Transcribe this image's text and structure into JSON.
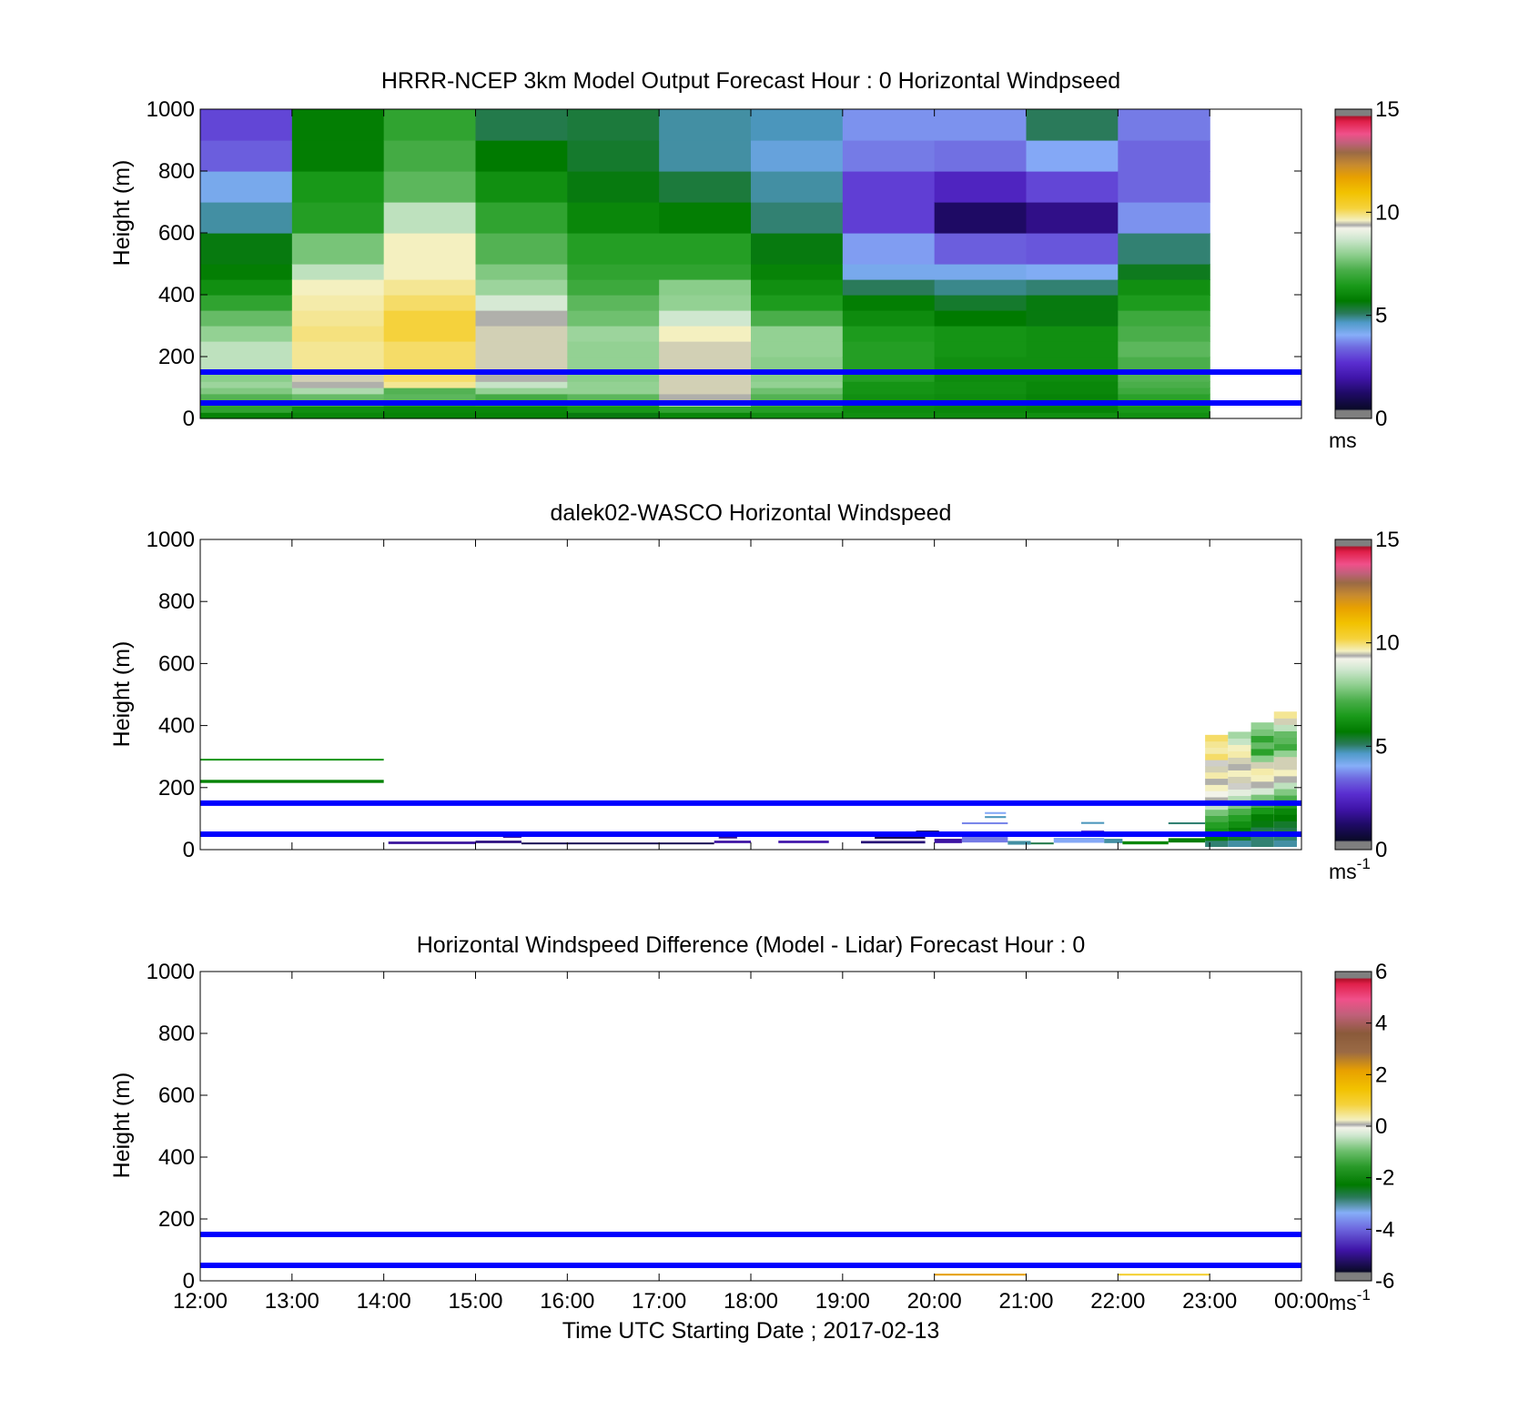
{
  "colorscales": {
    "speed": {
      "stops": [
        [
          0.0,
          "#7f7f7f"
        ],
        [
          0.025,
          "#7f7f7f"
        ],
        [
          0.03,
          "#0a0a28"
        ],
        [
          0.08,
          "#1e0a64"
        ],
        [
          0.13,
          "#3f14a8"
        ],
        [
          0.18,
          "#5a2ed0"
        ],
        [
          0.23,
          "#6f6ae0"
        ],
        [
          0.27,
          "#86aef8"
        ],
        [
          0.31,
          "#4f9ac8"
        ],
        [
          0.34,
          "#2a7a5a"
        ],
        [
          0.38,
          "#007a00"
        ],
        [
          0.43,
          "#1a9a1a"
        ],
        [
          0.48,
          "#4aae4a"
        ],
        [
          0.53,
          "#8fcf8f"
        ],
        [
          0.58,
          "#cfe7cf"
        ],
        [
          0.615,
          "#f4f4ea"
        ],
        [
          0.625,
          "#a8a8a8"
        ],
        [
          0.64,
          "#f4f0c0"
        ],
        [
          0.68,
          "#f5d23c"
        ],
        [
          0.73,
          "#f2c200"
        ],
        [
          0.78,
          "#e8a000"
        ],
        [
          0.82,
          "#c78a30"
        ],
        [
          0.86,
          "#9a6a45"
        ],
        [
          0.89,
          "#c0607a"
        ],
        [
          0.92,
          "#f0508a"
        ],
        [
          0.96,
          "#e0204a"
        ],
        [
          0.975,
          "#b0102a"
        ],
        [
          0.98,
          "#7f7f7f"
        ],
        [
          1.0,
          "#7f7f7f"
        ]
      ]
    },
    "difference": {
      "stops": [
        [
          0.0,
          "#7f7f7f"
        ],
        [
          0.025,
          "#7f7f7f"
        ],
        [
          0.03,
          "#0a0a28"
        ],
        [
          0.1,
          "#3f14a8"
        ],
        [
          0.17,
          "#6f6ae0"
        ],
        [
          0.22,
          "#86aef8"
        ],
        [
          0.27,
          "#2a7a5a"
        ],
        [
          0.31,
          "#007a00"
        ],
        [
          0.37,
          "#2a9a2a"
        ],
        [
          0.42,
          "#6ebf6e"
        ],
        [
          0.47,
          "#cfe7cf"
        ],
        [
          0.495,
          "#f4f4ea"
        ],
        [
          0.505,
          "#a8a8a8"
        ],
        [
          0.52,
          "#f4f0c0"
        ],
        [
          0.57,
          "#f5d23c"
        ],
        [
          0.62,
          "#f2c200"
        ],
        [
          0.68,
          "#e8a000"
        ],
        [
          0.74,
          "#9a6a45"
        ],
        [
          0.8,
          "#8a5a3a"
        ],
        [
          0.86,
          "#c0607a"
        ],
        [
          0.91,
          "#f0508a"
        ],
        [
          0.96,
          "#e0204a"
        ],
        [
          0.975,
          "#b0102a"
        ],
        [
          0.98,
          "#7f7f7f"
        ],
        [
          1.0,
          "#7f7f7f"
        ]
      ]
    }
  },
  "reference_line_color": "#0000ff",
  "chart_data": [
    {
      "type": "heatmap",
      "title": "HRRR-NCEP 3km Model Output   Forecast Hour : 0 Horizontal Windpseed",
      "ylabel": "Height (m)",
      "ylim": [
        0,
        1000
      ],
      "yticks": [
        "0",
        "200",
        "400",
        "600",
        "800",
        "1000"
      ],
      "xlim": [
        12,
        24
      ],
      "xticks": [
        "12:00",
        "13:00",
        "14:00",
        "15:00",
        "16:00",
        "17:00",
        "18:00",
        "19:00",
        "20:00",
        "21:00",
        "22:00",
        "23:00",
        "00:00"
      ],
      "show_xtick_labels": false,
      "colorbar": {
        "scale": "speed",
        "range": [
          0,
          15
        ],
        "ticks": [
          "0",
          "5",
          "10",
          "15"
        ],
        "unit": "ms",
        "unit_superscript": ""
      },
      "reference_lines_height_m": [
        150,
        50
      ],
      "cell_height_bands_m": [
        [
          0,
          20
        ],
        [
          20,
          40
        ],
        [
          40,
          60
        ],
        [
          60,
          80
        ],
        [
          80,
          100
        ],
        [
          100,
          120
        ],
        [
          120,
          150
        ],
        [
          150,
          200
        ],
        [
          200,
          250
        ],
        [
          250,
          300
        ],
        [
          300,
          350
        ],
        [
          350,
          400
        ],
        [
          400,
          450
        ],
        [
          450,
          500
        ],
        [
          500,
          600
        ],
        [
          600,
          700
        ],
        [
          700,
          800
        ],
        [
          800,
          900
        ],
        [
          900,
          1000
        ]
      ],
      "columns": [
        {
          "start_hour": 12,
          "end_hour": 13,
          "values_ms": [
            5.9,
            6.8,
            6.9,
            7.3,
            7.8,
            8.1,
            7.9,
            8.5,
            8.5,
            8.0,
            7.5,
            6.8,
            6.2,
            5.8,
            5.6,
            4.8,
            4.2,
            3.3,
            3.0
          ]
        },
        {
          "start_hour": 13,
          "end_hour": 14,
          "values_ms": [
            6.0,
            6.2,
            7.1,
            7.5,
            8.3,
            9.4,
            9.5,
            9.8,
            9.8,
            9.9,
            9.8,
            9.7,
            9.6,
            8.5,
            7.7,
            6.6,
            6.4,
            5.8,
            5.8
          ]
        },
        {
          "start_hour": 14,
          "end_hour": 15,
          "values_ms": [
            5.9,
            6.0,
            6.6,
            7.4,
            7.3,
            9.8,
            10.0,
            10.0,
            10.0,
            10.2,
            10.2,
            10.0,
            9.8,
            9.6,
            9.6,
            8.5,
            7.4,
            7.1,
            6.8
          ]
        },
        {
          "start_hour": 15,
          "end_hour": 16,
          "values_ms": [
            5.9,
            6.0,
            6.7,
            7.1,
            8.0,
            8.6,
            9.4,
            9.5,
            9.5,
            9.5,
            9.4,
            8.8,
            8.1,
            7.8,
            7.3,
            6.8,
            6.2,
            5.7,
            5.2
          ]
        },
        {
          "start_hour": 16,
          "end_hour": 17,
          "values_ms": [
            5.6,
            6.4,
            6.8,
            7.4,
            8.0,
            8.0,
            7.9,
            8.0,
            8.0,
            8.1,
            7.6,
            7.4,
            7.0,
            6.8,
            6.6,
            6.0,
            5.6,
            5.4,
            5.3
          ]
        },
        {
          "start_hour": 17,
          "end_hour": 18,
          "values_ms": [
            6.0,
            6.8,
            8.3,
            9.4,
            9.5,
            9.5,
            9.5,
            9.5,
            9.5,
            9.6,
            8.7,
            8.0,
            7.9,
            6.8,
            6.6,
            5.8,
            5.3,
            4.8,
            4.8
          ]
        },
        {
          "start_hour": 18,
          "end_hour": 19,
          "values_ms": [
            6.2,
            6.6,
            7.1,
            7.3,
            7.6,
            8.0,
            7.9,
            7.9,
            8.0,
            8.0,
            7.2,
            6.5,
            6.2,
            5.9,
            5.6,
            5.0,
            4.8,
            4.4,
            4.7
          ]
        },
        {
          "start_hour": 19,
          "end_hour": 20,
          "values_ms": [
            6.2,
            6.1,
            6.1,
            6.2,
            6.3,
            6.3,
            6.6,
            6.6,
            6.6,
            6.5,
            6.1,
            5.8,
            5.1,
            4.2,
            3.9,
            2.9,
            2.9,
            3.6,
            3.8
          ]
        },
        {
          "start_hour": 20,
          "end_hour": 21,
          "values_ms": [
            6.1,
            6.0,
            6.0,
            6.1,
            6.2,
            6.2,
            6.1,
            6.2,
            6.3,
            6.3,
            5.7,
            5.4,
            4.9,
            4.2,
            3.3,
            1.2,
            2.4,
            3.5,
            3.8
          ]
        },
        {
          "start_hour": 21,
          "end_hour": 22,
          "values_ms": [
            6.2,
            5.9,
            5.9,
            5.9,
            6.0,
            6.0,
            6.1,
            6.2,
            6.2,
            6.2,
            5.6,
            5.6,
            5.0,
            4.1,
            3.2,
            1.6,
            3.0,
            4.0,
            5.1
          ]
        },
        {
          "start_hour": 22,
          "end_hour": 23,
          "values_ms": [
            6.2,
            6.4,
            6.6,
            6.7,
            7.0,
            7.2,
            7.3,
            7.2,
            7.4,
            7.2,
            7.0,
            6.5,
            6.2,
            5.5,
            5.0,
            3.8,
            3.4,
            3.4,
            3.6
          ]
        }
      ]
    },
    {
      "type": "heatmap",
      "title": "dalek02-WASCO  Horizontal Windspeed",
      "ylabel": "Height (m)",
      "ylim": [
        0,
        1000
      ],
      "yticks": [
        "0",
        "200",
        "400",
        "600",
        "800",
        "1000"
      ],
      "xlim": [
        12,
        24
      ],
      "xticks": [
        "12:00",
        "13:00",
        "14:00",
        "15:00",
        "16:00",
        "17:00",
        "18:00",
        "19:00",
        "20:00",
        "21:00",
        "22:00",
        "23:00",
        "00:00"
      ],
      "show_xtick_labels": false,
      "colorbar": {
        "scale": "speed",
        "range": [
          0,
          15
        ],
        "ticks": [
          "0",
          "5",
          "10",
          "15"
        ],
        "unit": "ms",
        "unit_superscript": "-1"
      },
      "reference_lines_height_m": [
        150,
        50
      ],
      "segments": [
        {
          "hour_start": 12.0,
          "hour_end": 14.0,
          "height_m": 290,
          "thickness_m": 4,
          "value_ms": 6.3
        },
        {
          "hour_start": 12.0,
          "hour_end": 14.0,
          "height_m": 220,
          "thickness_m": 10,
          "value_ms": 5.9
        },
        {
          "hour_start": 14.05,
          "hour_end": 15.0,
          "height_m": 22,
          "thickness_m": 8,
          "value_ms": 1.8
        },
        {
          "hour_start": 15.0,
          "hour_end": 15.5,
          "height_m": 25,
          "thickness_m": 8,
          "value_ms": 1.5
        },
        {
          "hour_start": 15.3,
          "hour_end": 15.5,
          "height_m": 42,
          "thickness_m": 8,
          "value_ms": 1.8
        },
        {
          "hour_start": 15.5,
          "hour_end": 17.6,
          "height_m": 20,
          "thickness_m": 4,
          "value_ms": 1.0
        },
        {
          "hour_start": 17.6,
          "hour_end": 18.0,
          "height_m": 25,
          "thickness_m": 8,
          "value_ms": 1.9
        },
        {
          "hour_start": 17.65,
          "hour_end": 17.85,
          "height_m": 40,
          "thickness_m": 8,
          "value_ms": 1.6
        },
        {
          "hour_start": 18.3,
          "hour_end": 18.85,
          "height_m": 25,
          "thickness_m": 8,
          "value_ms": 2.0
        },
        {
          "hour_start": 19.2,
          "hour_end": 19.9,
          "height_m": 24,
          "thickness_m": 8,
          "value_ms": 1.4
        },
        {
          "hour_start": 19.35,
          "hour_end": 19.9,
          "height_m": 40,
          "thickness_m": 10,
          "value_ms": 1.0
        },
        {
          "hour_start": 19.8,
          "hour_end": 20.05,
          "height_m": 58,
          "thickness_m": 7,
          "value_ms": 0.8
        },
        {
          "hour_start": 20.0,
          "hour_end": 20.3,
          "height_m": 28,
          "thickness_m": 14,
          "value_ms": 1.9
        },
        {
          "hour_start": 20.3,
          "hour_end": 20.8,
          "height_m": 32,
          "thickness_m": 18,
          "value_ms": 3.6
        },
        {
          "hour_start": 20.3,
          "hour_end": 20.8,
          "height_m": 85,
          "thickness_m": 6,
          "value_ms": 3.7
        },
        {
          "hour_start": 20.55,
          "hour_end": 20.78,
          "height_m": 105,
          "thickness_m": 6,
          "value_ms": 4.7
        },
        {
          "hour_start": 20.55,
          "hour_end": 20.78,
          "height_m": 118,
          "thickness_m": 6,
          "value_ms": 4.0
        },
        {
          "hour_start": 20.8,
          "hour_end": 21.05,
          "height_m": 22,
          "thickness_m": 12,
          "value_ms": 4.8
        },
        {
          "hour_start": 21.05,
          "hour_end": 21.3,
          "height_m": 20,
          "thickness_m": 6,
          "value_ms": 5.2
        },
        {
          "hour_start": 21.3,
          "hour_end": 21.85,
          "height_m": 30,
          "thickness_m": 16,
          "value_ms": 4.0
        },
        {
          "hour_start": 21.6,
          "hour_end": 21.85,
          "height_m": 58,
          "thickness_m": 8,
          "value_ms": 3.0
        },
        {
          "hour_start": 21.6,
          "hour_end": 21.85,
          "height_m": 86,
          "thickness_m": 6,
          "value_ms": 4.7
        },
        {
          "hour_start": 21.85,
          "hour_end": 22.05,
          "height_m": 28,
          "thickness_m": 14,
          "value_ms": 4.8
        },
        {
          "hour_start": 22.05,
          "hour_end": 22.55,
          "height_m": 22,
          "thickness_m": 10,
          "value_ms": 6.0
        },
        {
          "hour_start": 22.55,
          "hour_end": 22.95,
          "height_m": 30,
          "thickness_m": 14,
          "value_ms": 5.8
        },
        {
          "hour_start": 22.55,
          "hour_end": 22.95,
          "height_m": 85,
          "thickness_m": 6,
          "value_ms": 5.0
        }
      ],
      "profiles": [
        {
          "hour_start": 22.95,
          "hour_end": 23.2,
          "band_bottom_m": 10,
          "band_top_m": 370,
          "values_ms": [
            5.0,
            5.8,
            6.3,
            6.6,
            7.1,
            7.7,
            8.6,
            9.4,
            9.2,
            9.6,
            9.4,
            9.7,
            9.5,
            9.3,
            10.0,
            9.7,
            9.8,
            10.0
          ]
        },
        {
          "hour_start": 23.2,
          "hour_end": 23.45,
          "band_bottom_m": 10,
          "band_top_m": 380,
          "values_ms": [
            4.8,
            5.4,
            5.8,
            6.2,
            6.6,
            7.2,
            7.8,
            8.4,
            9.0,
            9.3,
            9.5,
            9.6,
            9.4,
            9.5,
            9.7,
            9.6,
            8.6,
            8.2
          ]
        },
        {
          "hour_start": 23.45,
          "hour_end": 23.7,
          "band_bottom_m": 10,
          "band_top_m": 410,
          "values_ms": [
            5.0,
            5.0,
            5.2,
            5.6,
            5.8,
            6.4,
            7.1,
            7.7,
            8.8,
            9.4,
            9.6,
            9.7,
            9.5,
            7.9,
            6.7,
            7.5,
            6.8,
            7.7,
            8.0
          ]
        },
        {
          "hour_start": 23.7,
          "hour_end": 23.95,
          "band_bottom_m": 10,
          "band_top_m": 445,
          "values_ms": [
            4.8,
            5.0,
            5.2,
            5.4,
            5.7,
            6.0,
            6.6,
            7.2,
            7.8,
            8.5,
            9.4,
            9.6,
            9.5,
            9.5,
            8.0,
            7.0,
            7.4,
            7.5,
            8.5,
            9.5,
            9.8
          ]
        }
      ]
    },
    {
      "type": "heatmap",
      "title": "Horizontal Windspeed Difference (Model - Lidar) Forecast Hour : 0",
      "ylabel": "Height (m)",
      "xlabel": "Time UTC  Starting Date ; 2017-02-13",
      "ylim": [
        0,
        1000
      ],
      "yticks": [
        "0",
        "200",
        "400",
        "600",
        "800",
        "1000"
      ],
      "xlim": [
        12,
        24
      ],
      "xticks": [
        "12:00",
        "13:00",
        "14:00",
        "15:00",
        "16:00",
        "17:00",
        "18:00",
        "19:00",
        "20:00",
        "21:00",
        "22:00",
        "23:00",
        "00:00"
      ],
      "show_xtick_labels": true,
      "colorbar": {
        "scale": "difference",
        "range": [
          -6,
          6
        ],
        "ticks": [
          "-6",
          "-4",
          "-2",
          "0",
          "2",
          "4",
          "6"
        ],
        "unit": "ms",
        "unit_superscript": "-1"
      },
      "reference_lines_height_m": [
        150,
        50
      ],
      "segments": [
        {
          "hour_start": 20.0,
          "hour_end": 21.0,
          "height_m": 20,
          "thickness_m": 4,
          "value_ms": 2.2
        },
        {
          "hour_start": 22.0,
          "hour_end": 23.0,
          "height_m": 20,
          "thickness_m": 4,
          "value_ms": 1.0
        }
      ]
    }
  ]
}
